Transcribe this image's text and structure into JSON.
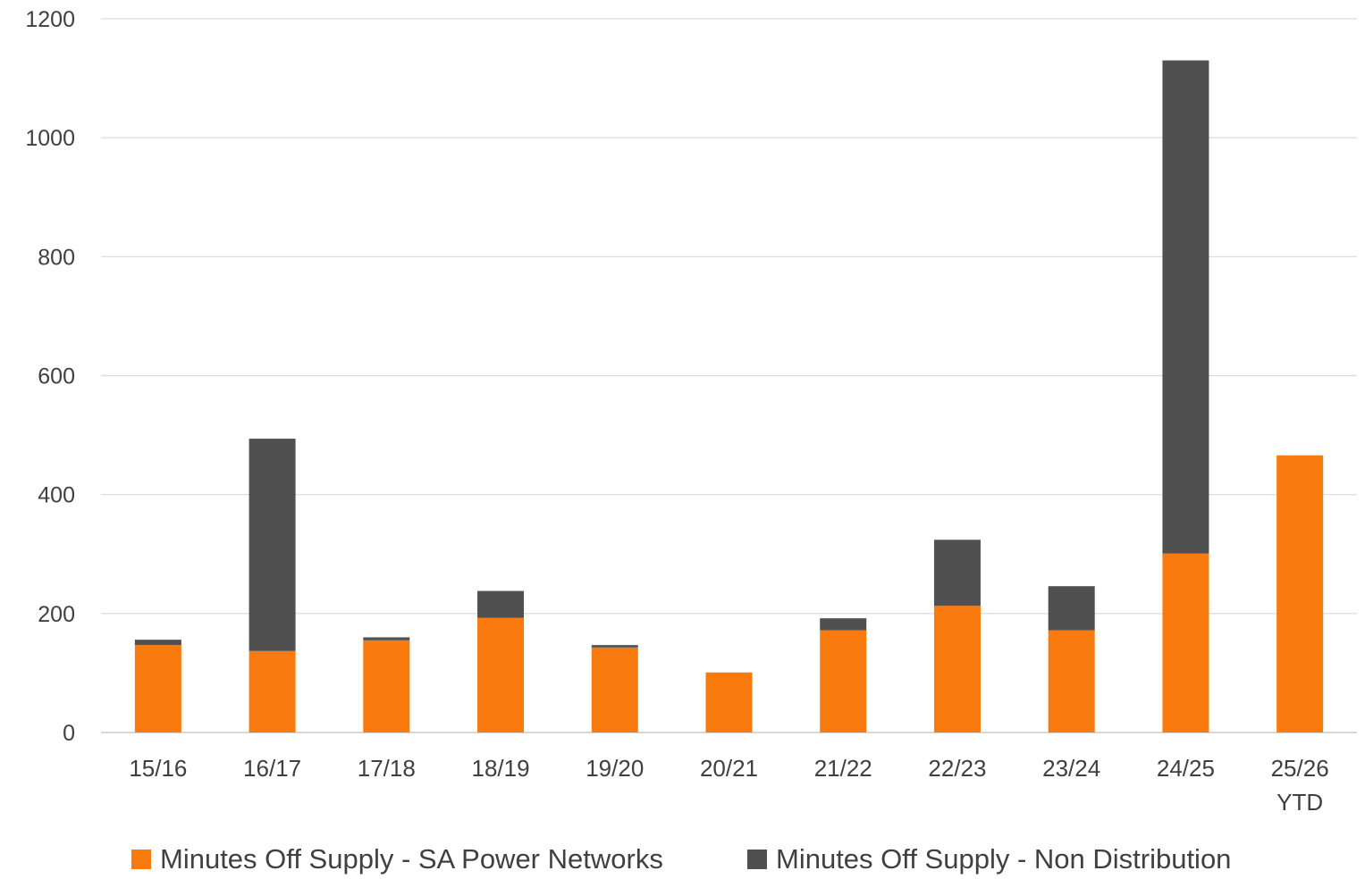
{
  "chart_data": {
    "type": "bar",
    "stacked": true,
    "title": "",
    "xlabel": "",
    "ylabel": "",
    "ylim": [
      0,
      1200
    ],
    "yticks": [
      0,
      200,
      400,
      600,
      800,
      1000,
      1200
    ],
    "grid": true,
    "legend_position": "bottom",
    "categories": [
      [
        "15/16"
      ],
      [
        "16/17"
      ],
      [
        "17/18"
      ],
      [
        "18/19"
      ],
      [
        "19/20"
      ],
      [
        "20/21"
      ],
      [
        "21/22"
      ],
      [
        "22/23"
      ],
      [
        "23/24"
      ],
      [
        "24/25"
      ],
      [
        "25/26",
        "YTD"
      ]
    ],
    "series": [
      {
        "name": "Minutes Off Supply - SA Power Networks",
        "color": "#F97A0F",
        "values": [
          147,
          137,
          155,
          193,
          143,
          101,
          172,
          213,
          172,
          301,
          466
        ]
      },
      {
        "name": "Minutes Off Supply - Non Distribution",
        "color": "#505050",
        "values": [
          9,
          357,
          5,
          45,
          4,
          0,
          20,
          111,
          74,
          829,
          0
        ]
      }
    ]
  }
}
